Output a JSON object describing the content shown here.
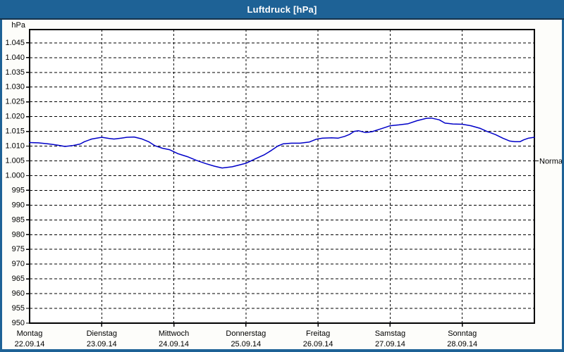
{
  "window": {
    "title": "Luftdruck [hPa]"
  },
  "colors": {
    "frame": "#1e6296",
    "titlebar_edge": "#16324a",
    "content_bg": "#fdfdfa",
    "plot_bg": "#ffffff",
    "grid": "#000000",
    "axis": "#000000",
    "line": "#0000c8",
    "title_text": "#ffffff"
  },
  "chart_data": {
    "type": "line",
    "title": "Luftdruck [hPa]",
    "unit_label": "hPa",
    "ylabel": "hPa",
    "xlabel": "",
    "grid": "dashed, horizontal every 5 hPa, vertical every day",
    "legend_position": "none",
    "y_axis": {
      "range": [
        950,
        1049.5
      ],
      "tick_step": 5,
      "ticks": [
        {
          "value": 1045,
          "label": "1.045"
        },
        {
          "value": 1040,
          "label": "1.040"
        },
        {
          "value": 1035,
          "label": "1.035"
        },
        {
          "value": 1030,
          "label": "1.030"
        },
        {
          "value": 1025,
          "label": "1.025"
        },
        {
          "value": 1020,
          "label": "1.020"
        },
        {
          "value": 1015,
          "label": "1.015"
        },
        {
          "value": 1010,
          "label": "1.010"
        },
        {
          "value": 1005,
          "label": "1.005"
        },
        {
          "value": 1000,
          "label": "1.000"
        },
        {
          "value": 995,
          "label": "995"
        },
        {
          "value": 990,
          "label": "990"
        },
        {
          "value": 985,
          "label": "985"
        },
        {
          "value": 980,
          "label": "980"
        },
        {
          "value": 975,
          "label": "975"
        },
        {
          "value": 970,
          "label": "970"
        },
        {
          "value": 965,
          "label": "965"
        },
        {
          "value": 960,
          "label": "960"
        },
        {
          "value": 955,
          "label": "955"
        },
        {
          "value": 950,
          "label": "950"
        }
      ]
    },
    "x_axis": {
      "range_days": [
        0,
        7
      ],
      "days": [
        {
          "name": "Montag",
          "date": "22.09.14"
        },
        {
          "name": "Dienstag",
          "date": "23.09.14"
        },
        {
          "name": "Mittwoch",
          "date": "24.09.14"
        },
        {
          "name": "Donnerstag",
          "date": "25.09.14"
        },
        {
          "name": "Freitag",
          "date": "26.09.14"
        },
        {
          "name": "Samstag",
          "date": "27.09.14"
        },
        {
          "name": "Sonntag",
          "date": "28.09.14"
        }
      ]
    },
    "normal_marker": {
      "label": "Normal",
      "value": 1005
    },
    "series": [
      {
        "name": "Luftdruck",
        "color": "#0000c8",
        "points": [
          [
            0.0,
            1011.2
          ],
          [
            0.12,
            1011.1
          ],
          [
            0.25,
            1010.8
          ],
          [
            0.37,
            1010.4
          ],
          [
            0.49,
            1009.9
          ],
          [
            0.6,
            1010.2
          ],
          [
            0.7,
            1010.7
          ],
          [
            0.76,
            1011.5
          ],
          [
            0.86,
            1012.4
          ],
          [
            1.0,
            1013.0
          ],
          [
            1.1,
            1012.6
          ],
          [
            1.17,
            1012.4
          ],
          [
            1.27,
            1012.7
          ],
          [
            1.35,
            1013.0
          ],
          [
            1.45,
            1013.1
          ],
          [
            1.55,
            1012.5
          ],
          [
            1.65,
            1011.5
          ],
          [
            1.74,
            1010.1
          ],
          [
            1.84,
            1009.3
          ],
          [
            1.94,
            1008.8
          ],
          [
            2.06,
            1007.4
          ],
          [
            2.19,
            1006.4
          ],
          [
            2.31,
            1005.2
          ],
          [
            2.44,
            1004.1
          ],
          [
            2.56,
            1003.2
          ],
          [
            2.67,
            1002.6
          ],
          [
            2.81,
            1003.0
          ],
          [
            2.94,
            1003.8
          ],
          [
            3.0,
            1004.2
          ],
          [
            3.13,
            1005.7
          ],
          [
            3.25,
            1007.0
          ],
          [
            3.35,
            1008.5
          ],
          [
            3.44,
            1010.0
          ],
          [
            3.52,
            1010.8
          ],
          [
            3.63,
            1011.0
          ],
          [
            3.75,
            1011.0
          ],
          [
            3.88,
            1011.4
          ],
          [
            3.97,
            1012.3
          ],
          [
            4.06,
            1012.7
          ],
          [
            4.19,
            1012.8
          ],
          [
            4.28,
            1012.7
          ],
          [
            4.37,
            1013.3
          ],
          [
            4.44,
            1014.0
          ],
          [
            4.5,
            1015.0
          ],
          [
            4.56,
            1015.2
          ],
          [
            4.66,
            1014.6
          ],
          [
            4.75,
            1014.9
          ],
          [
            4.85,
            1015.7
          ],
          [
            4.94,
            1016.4
          ],
          [
            5.0,
            1016.9
          ],
          [
            5.12,
            1017.2
          ],
          [
            5.25,
            1017.6
          ],
          [
            5.37,
            1018.6
          ],
          [
            5.5,
            1019.4
          ],
          [
            5.57,
            1019.5
          ],
          [
            5.68,
            1018.9
          ],
          [
            5.76,
            1017.8
          ],
          [
            5.87,
            1017.5
          ],
          [
            6.0,
            1017.4
          ],
          [
            6.12,
            1016.9
          ],
          [
            6.25,
            1016.0
          ],
          [
            6.34,
            1015.0
          ],
          [
            6.46,
            1013.9
          ],
          [
            6.56,
            1012.7
          ],
          [
            6.66,
            1011.7
          ],
          [
            6.73,
            1011.5
          ],
          [
            6.8,
            1011.5
          ],
          [
            6.85,
            1012.1
          ],
          [
            6.92,
            1012.7
          ],
          [
            7.0,
            1013.0
          ]
        ]
      }
    ]
  }
}
